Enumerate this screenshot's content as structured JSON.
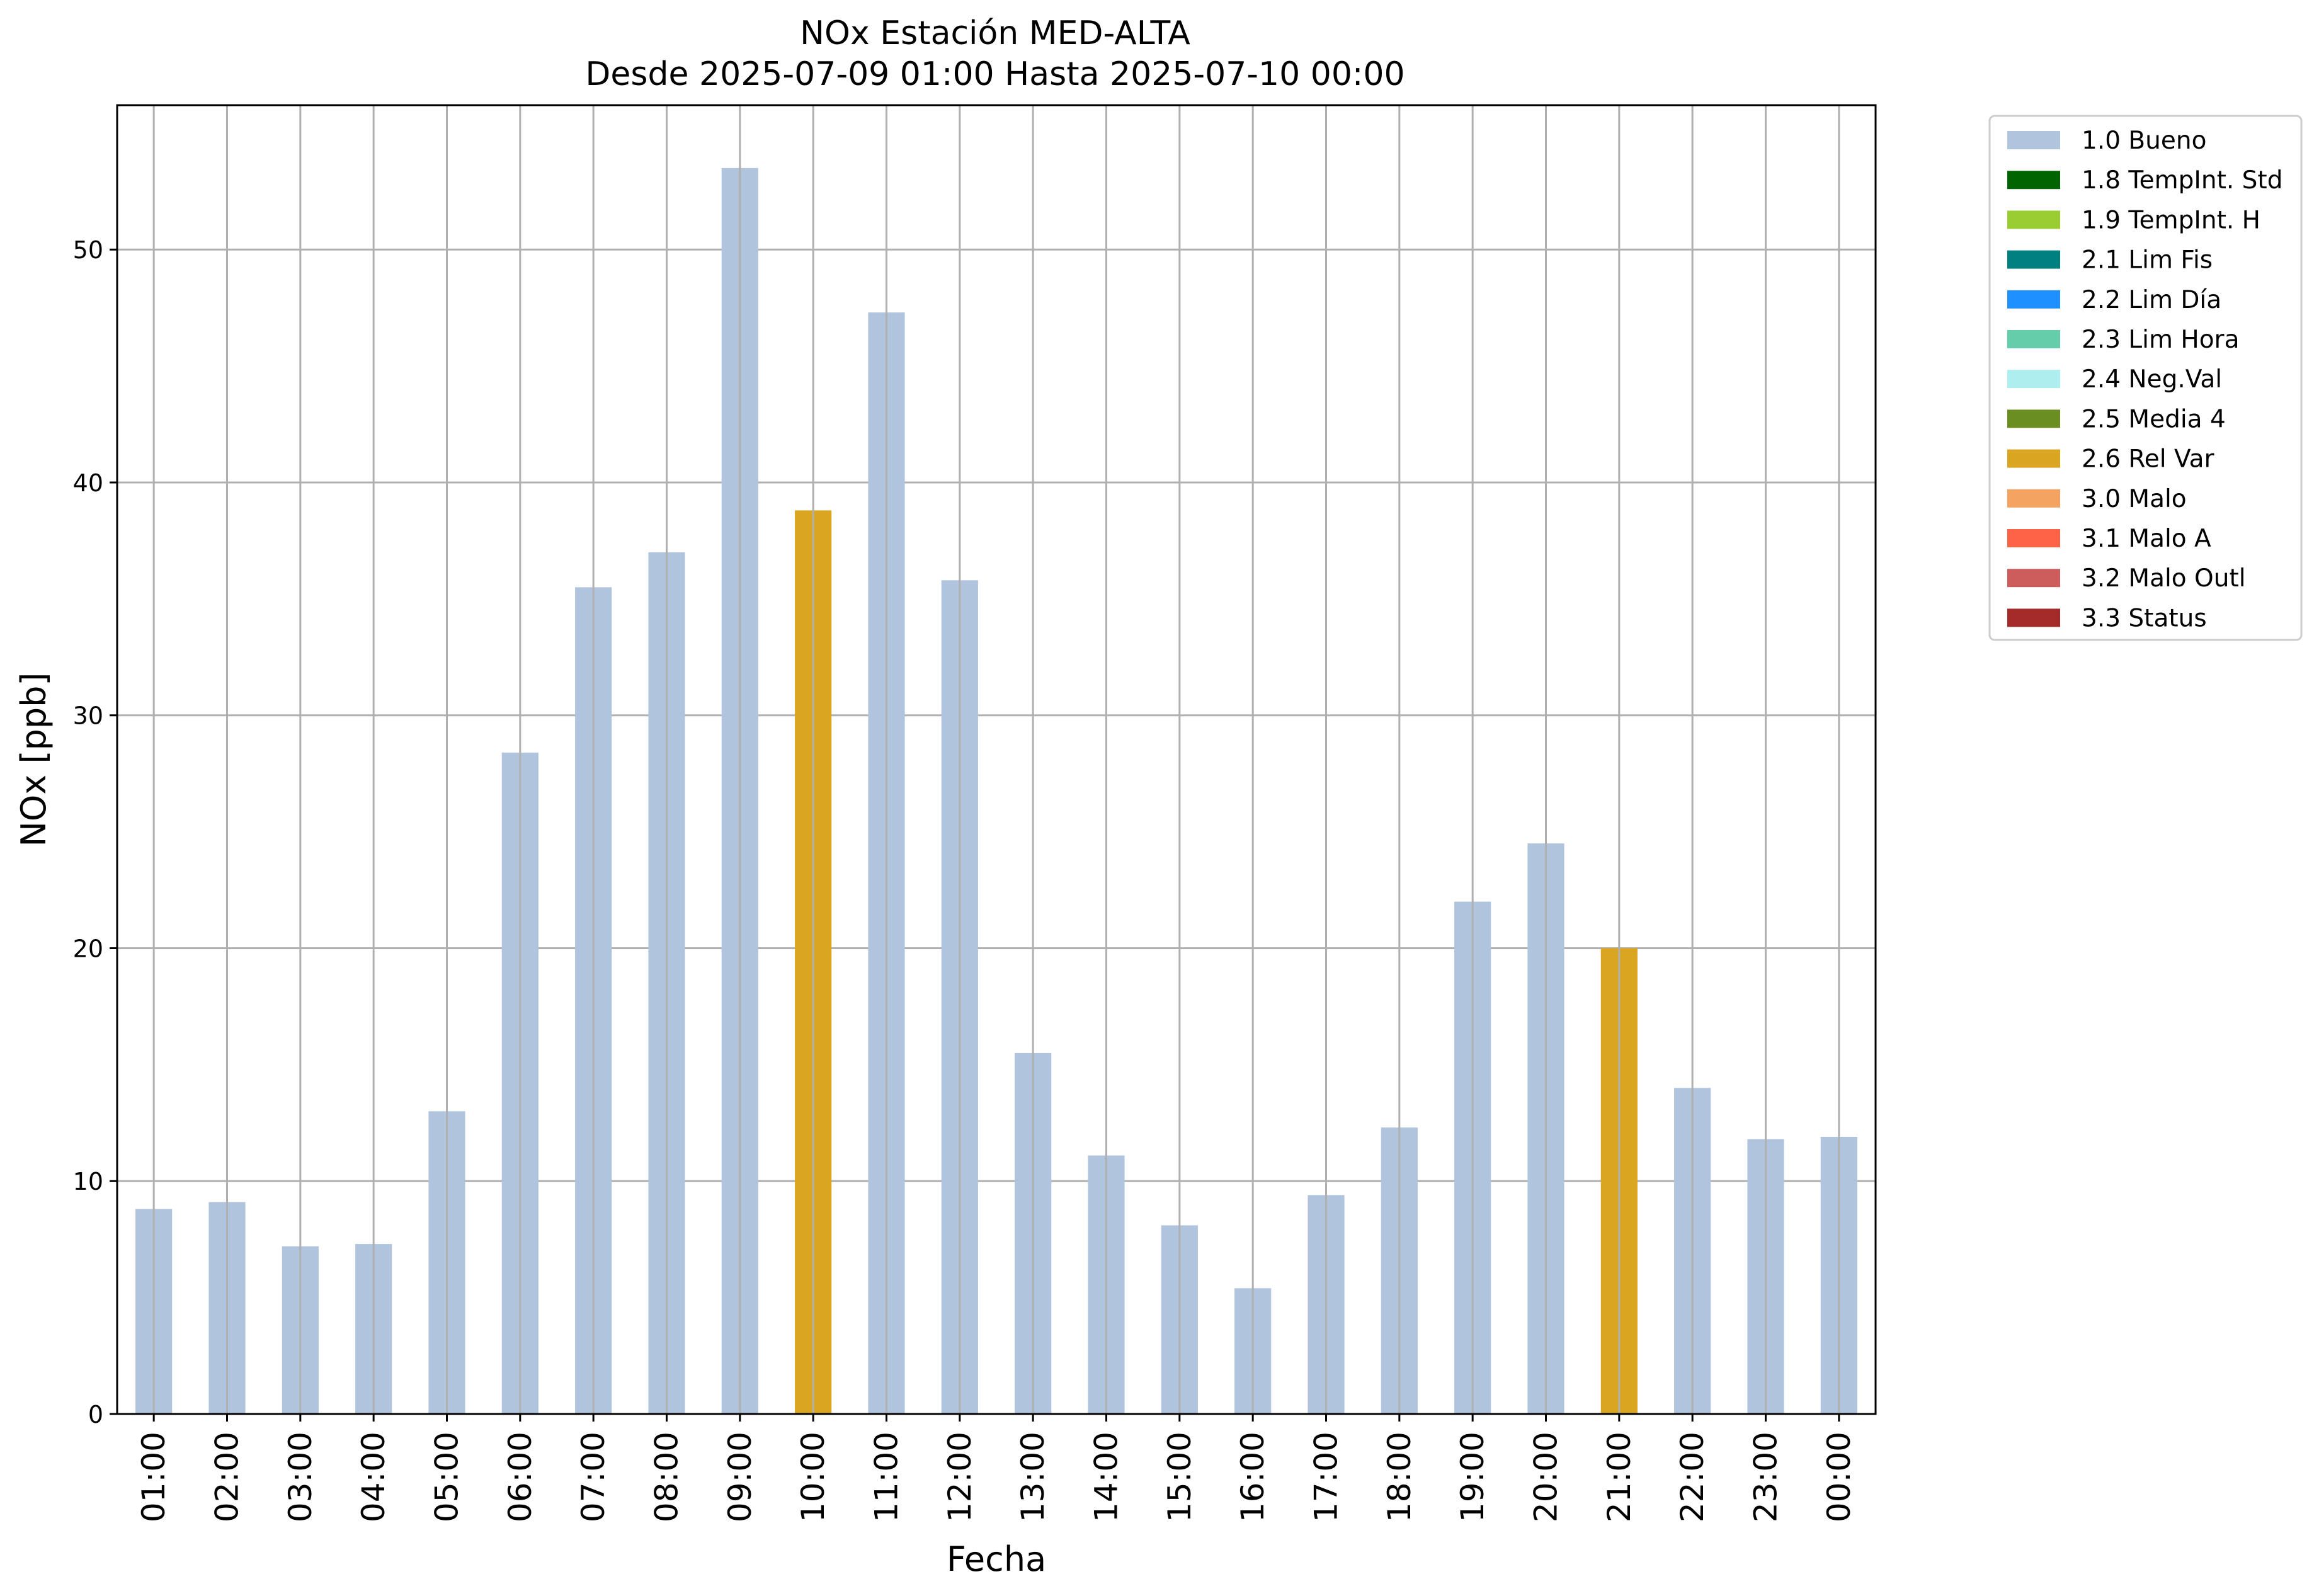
{
  "chart_data": {
    "type": "bar",
    "title": "NOx Estación MED-ALTA",
    "subtitle": "Desde 2025-07-09 01:00 Hasta 2025-07-10 00:00",
    "xlabel": "Fecha",
    "ylabel": "NOx [ppb]",
    "ylim": [
      0,
      56.2
    ],
    "yticks": [
      0,
      10,
      20,
      30,
      40,
      50
    ],
    "grid": true,
    "legend_position": "outside top-right",
    "categories": [
      "01:00",
      "02:00",
      "03:00",
      "04:00",
      "05:00",
      "06:00",
      "07:00",
      "08:00",
      "09:00",
      "10:00",
      "11:00",
      "12:00",
      "13:00",
      "14:00",
      "15:00",
      "16:00",
      "17:00",
      "18:00",
      "19:00",
      "20:00",
      "21:00",
      "22:00",
      "23:00",
      "00:00"
    ],
    "values": [
      8.8,
      9.1,
      7.2,
      7.3,
      13.0,
      28.4,
      35.5,
      37.0,
      53.5,
      38.8,
      47.3,
      35.8,
      15.5,
      11.1,
      8.1,
      5.4,
      9.4,
      12.3,
      22.0,
      24.5,
      20.0,
      14.0,
      11.8,
      11.9
    ],
    "flags": [
      "1.0 Bueno",
      "1.0 Bueno",
      "1.0 Bueno",
      "1.0 Bueno",
      "1.0 Bueno",
      "1.0 Bueno",
      "1.0 Bueno",
      "1.0 Bueno",
      "1.0 Bueno",
      "2.6 Rel Var",
      "1.0 Bueno",
      "1.0 Bueno",
      "1.0 Bueno",
      "1.0 Bueno",
      "1.0 Bueno",
      "1.0 Bueno",
      "1.0 Bueno",
      "1.0 Bueno",
      "1.0 Bueno",
      "1.0 Bueno",
      "2.6 Rel Var",
      "1.0 Bueno",
      "1.0 Bueno",
      "1.0 Bueno"
    ],
    "legend": [
      {
        "label": "1.0 Bueno",
        "color": "#b0c4de"
      },
      {
        "label": "1.8 TempInt. Std",
        "color": "#006400"
      },
      {
        "label": "1.9 TempInt. H",
        "color": "#9acd32"
      },
      {
        "label": "2.1 Lim Fis",
        "color": "#008080"
      },
      {
        "label": "2.2 Lim Día",
        "color": "#1e90ff"
      },
      {
        "label": "2.3 Lim Hora",
        "color": "#66cdaa"
      },
      {
        "label": "2.4 Neg.Val",
        "color": "#afeeee"
      },
      {
        "label": "2.5 Media 4",
        "color": "#6b8e23"
      },
      {
        "label": "2.6 Rel Var",
        "color": "#daa520"
      },
      {
        "label": "3.0 Malo",
        "color": "#f4a460"
      },
      {
        "label": "3.1 Malo A",
        "color": "#ff6347"
      },
      {
        "label": "3.2 Malo Outl",
        "color": "#cd5c5c"
      },
      {
        "label": "3.3 Status",
        "color": "#a52a2a"
      }
    ]
  }
}
